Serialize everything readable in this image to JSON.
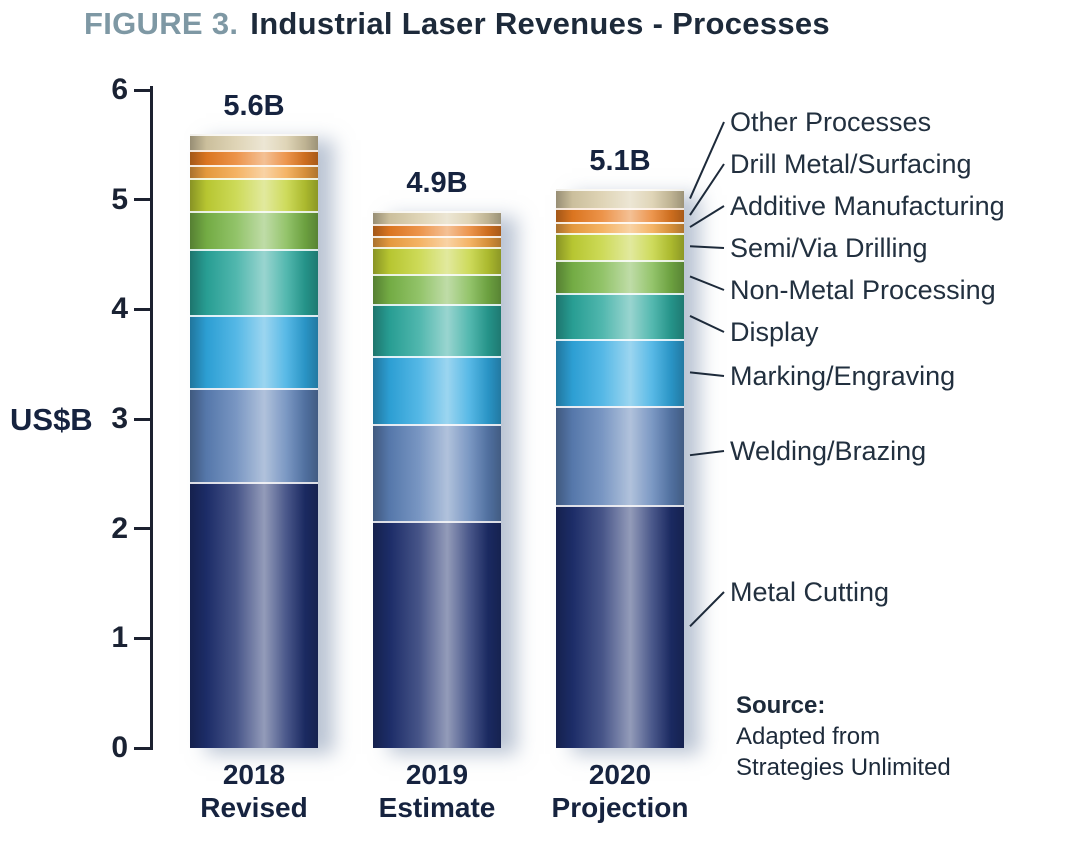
{
  "figure": {
    "prefix": "FIGURE 3.",
    "title": "Industrial Laser Revenues - Processes"
  },
  "source": {
    "label": "Source:",
    "lines": [
      "Adapted from",
      "Strategies Unlimited"
    ]
  },
  "colors": {
    "title_prefix": "#7e98a4",
    "text_dark": "#1d2a3a",
    "axis": "#1c2130",
    "bar_shadow": "rgba(120,140,170,0.5)"
  },
  "chart_data": {
    "type": "bar",
    "stacked": true,
    "title": "Industrial Laser Revenues - Processes",
    "ylabel": "US$B",
    "ylim": [
      0,
      6
    ],
    "yticks": [
      0,
      1,
      2,
      3,
      4,
      5,
      6
    ],
    "grid": false,
    "legend_position": "right",
    "categories": [
      {
        "label": "2018",
        "sublabel": "Revised"
      },
      {
        "label": "2019",
        "sublabel": "Estimate"
      },
      {
        "label": "2020",
        "sublabel": "Projection"
      }
    ],
    "totals": [
      "5.6B",
      "4.9B",
      "5.1B"
    ],
    "series": [
      {
        "name": "Metal Cutting",
        "color": "#1e2f6e",
        "values": [
          2.43,
          2.07,
          2.22
        ]
      },
      {
        "name": "Welding/Brazing",
        "color": "#5b7fb5",
        "values": [
          0.85,
          0.88,
          0.9
        ]
      },
      {
        "name": "Marking/Engraving",
        "color": "#2fa8e0",
        "values": [
          0.67,
          0.62,
          0.61
        ]
      },
      {
        "name": "Display",
        "color": "#2aa79c",
        "values": [
          0.6,
          0.48,
          0.42
        ]
      },
      {
        "name": "Non-Metal Processing",
        "color": "#7ab648",
        "values": [
          0.35,
          0.27,
          0.3
        ]
      },
      {
        "name": "Semi/Via Drilling",
        "color": "#c2d234",
        "values": [
          0.3,
          0.25,
          0.25
        ]
      },
      {
        "name": "Additive Manufacturing",
        "color": "#f2a241",
        "values": [
          0.12,
          0.1,
          0.1
        ]
      },
      {
        "name": "Drill Metal/Surfacing",
        "color": "#e87c22",
        "values": [
          0.13,
          0.11,
          0.12
        ]
      },
      {
        "name": "Other Processes",
        "color": "#d8cba6",
        "values": [
          0.15,
          0.12,
          0.18
        ]
      }
    ],
    "legend_order_top_to_bottom": [
      "Other Processes",
      "Drill Metal/Surfacing",
      "Additive Manufacturing",
      "Semi/Via Drilling",
      "Non-Metal Processing",
      "Display",
      "Marking/Engraving",
      "Welding/Brazing",
      "Metal Cutting"
    ]
  }
}
